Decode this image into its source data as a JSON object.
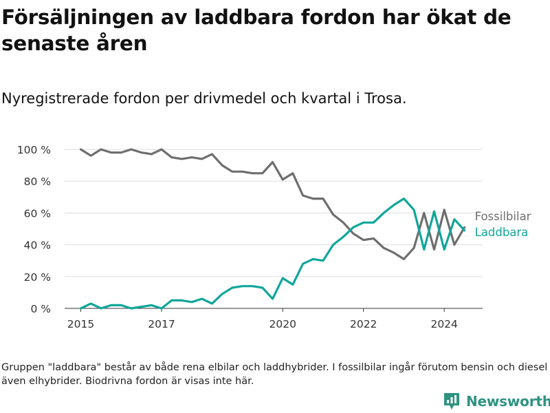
{
  "title": "Försäljningen av laddbara fordon har ökat de senaste åren",
  "subtitle": "Nyregistrerade fordon per drivmedel och kvartal i Trosa.",
  "note": "Gruppen \"laddbara\" består av både rena elbilar och laddhybrider. I fossilbilar ingår förutom bensin och diesel även elhybrider. Biodrivna fordon är visas inte här.",
  "brand": {
    "name": "Newsworthy",
    "icon": "newsworthy-logo-icon",
    "color": "#2f9381"
  },
  "chart_data": {
    "type": "line",
    "x_unit": "year (quarterly, decimal years)",
    "x": [
      2015.0,
      2015.25,
      2015.5,
      2015.75,
      2016.0,
      2016.25,
      2016.5,
      2016.75,
      2017.0,
      2017.25,
      2017.5,
      2017.75,
      2018.0,
      2018.25,
      2018.5,
      2018.75,
      2019.0,
      2019.25,
      2019.5,
      2019.75,
      2020.0,
      2020.25,
      2020.5,
      2020.75,
      2021.0,
      2021.25,
      2021.5,
      2021.75,
      2022.0,
      2022.25,
      2022.5,
      2022.75,
      2023.0,
      2023.25,
      2023.5,
      2023.75,
      2024.0,
      2024.25,
      2024.5
    ],
    "series": [
      {
        "name": "Fossilbilar",
        "color": "#6e6e6e",
        "values": [
          100,
          96,
          100,
          98,
          98,
          100,
          98,
          97,
          100,
          95,
          94,
          95,
          94,
          97,
          90,
          86,
          86,
          85,
          85,
          92,
          81,
          85,
          71,
          69,
          69,
          59,
          54,
          47,
          43,
          44,
          38,
          35,
          31,
          38,
          60,
          37,
          62,
          40,
          51
        ]
      },
      {
        "name": "Laddbara",
        "color": "#10a69a",
        "values": [
          0,
          3,
          0,
          2,
          2,
          0,
          1,
          2,
          0,
          5,
          5,
          4,
          6,
          3,
          9,
          13,
          14,
          14,
          13,
          6,
          19,
          15,
          28,
          31,
          30,
          40,
          45,
          51,
          54,
          54,
          60,
          65,
          69,
          62,
          37,
          61,
          37,
          56,
          49
        ]
      }
    ],
    "x_ticks": [
      2015,
      2017,
      2020,
      2022,
      2024
    ],
    "y_ticks": [
      0,
      20,
      40,
      60,
      80,
      100
    ],
    "y_tick_labels": [
      "0 %",
      "20 %",
      "40 %",
      "60 %",
      "80 %",
      "100 %"
    ],
    "xlim": [
      2014.6,
      2024.95
    ],
    "ylim": [
      0,
      100
    ],
    "grid": "horizontal",
    "legend": "inline-right"
  }
}
